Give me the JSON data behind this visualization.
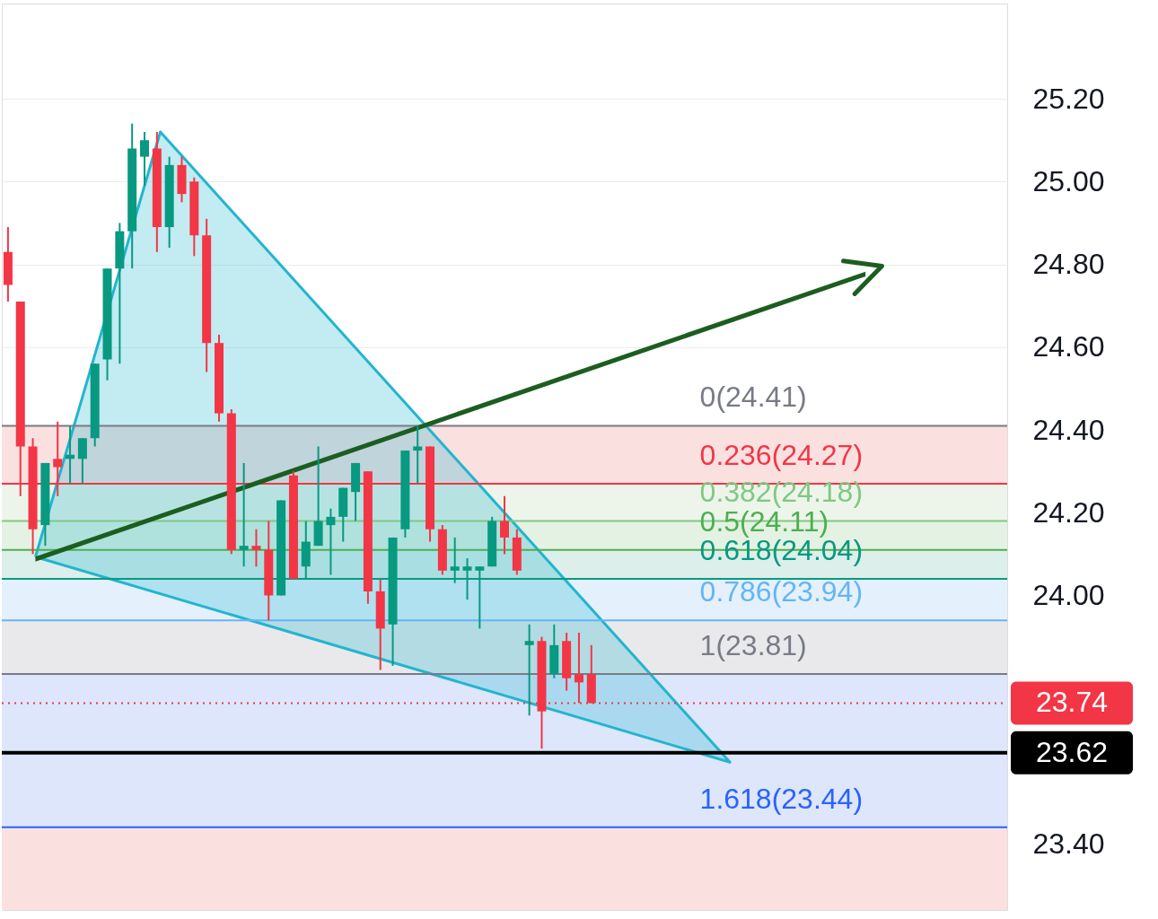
{
  "chart_data": {
    "type": "candlestick",
    "categories": [
      null,
      null,
      null,
      null,
      null,
      null,
      null,
      null,
      null,
      null,
      null,
      null,
      null,
      null,
      null,
      null,
      null,
      null,
      null,
      null,
      null,
      null,
      null,
      null,
      null,
      null,
      null,
      null,
      null,
      null,
      null,
      null,
      null,
      null,
      null,
      null,
      null,
      null,
      null,
      null,
      null,
      null,
      null,
      null,
      null,
      null,
      null,
      null,
      null,
      null,
      null,
      null,
      null,
      null,
      null,
      null,
      null,
      null,
      null,
      null,
      null,
      null,
      null,
      null,
      null,
      null,
      null,
      null,
      null,
      null,
      null,
      null,
      null,
      null,
      null,
      null,
      null,
      null,
      null,
      null,
      null
    ],
    "ohlc": [
      [
        24.83,
        24.89,
        24.71,
        24.75
      ],
      [
        24.71,
        24.71,
        24.24,
        24.36
      ],
      [
        24.36,
        24.38,
        24.1,
        24.16
      ],
      [
        24.17,
        24.32,
        24.12,
        24.32
      ],
      [
        24.33,
        24.42,
        24.24,
        24.31
      ],
      [
        24.33,
        24.41,
        24.27,
        24.34
      ],
      [
        24.33,
        24.38,
        24.27,
        24.38
      ],
      [
        24.38,
        24.56,
        24.36,
        24.56
      ],
      [
        24.57,
        24.79,
        24.52,
        24.79
      ],
      [
        24.79,
        24.9,
        24.56,
        24.88
      ],
      [
        24.88,
        25.14,
        24.79,
        25.08
      ],
      [
        25.06,
        25.12,
        24.99,
        25.1
      ],
      [
        25.08,
        25.12,
        24.83,
        24.89
      ],
      [
        24.89,
        25.06,
        24.84,
        25.04
      ],
      [
        25.04,
        25.06,
        24.95,
        24.97
      ],
      [
        25.0,
        25.01,
        24.82,
        24.87
      ],
      [
        24.87,
        24.91,
        24.54,
        24.61
      ],
      [
        24.61,
        24.63,
        24.42,
        24.44
      ],
      [
        24.44,
        24.45,
        24.1,
        24.11
      ],
      [
        24.11,
        24.32,
        24.07,
        24.12
      ],
      [
        24.12,
        24.16,
        24.07,
        24.11
      ],
      [
        24.11,
        24.18,
        23.94,
        24.0
      ],
      [
        24.0,
        24.23,
        24.0,
        24.23
      ],
      [
        24.29,
        24.3,
        24.04,
        24.04
      ],
      [
        24.07,
        24.18,
        24.04,
        24.13
      ],
      [
        24.12,
        24.36,
        24.12,
        24.18
      ],
      [
        24.17,
        24.21,
        24.05,
        24.19
      ],
      [
        24.19,
        24.26,
        24.13,
        24.26
      ],
      [
        24.25,
        24.32,
        24.18,
        24.32
      ],
      [
        24.3,
        24.3,
        23.98,
        24.01
      ],
      [
        24.01,
        24.04,
        23.82,
        23.92
      ],
      [
        23.93,
        24.14,
        23.83,
        24.14
      ],
      [
        24.16,
        24.35,
        24.14,
        24.35
      ],
      [
        24.35,
        24.41,
        24.27,
        24.36
      ],
      [
        24.36,
        24.36,
        24.13,
        24.16
      ],
      [
        24.16,
        24.17,
        24.05,
        24.06
      ],
      [
        24.06,
        24.14,
        24.03,
        24.07
      ],
      [
        24.06,
        24.09,
        23.99,
        24.07
      ],
      [
        24.06,
        24.07,
        23.92,
        24.07
      ],
      [
        24.07,
        24.19,
        24.07,
        24.18
      ],
      [
        24.18,
        24.24,
        24.1,
        24.14
      ],
      [
        24.14,
        24.16,
        24.05,
        24.06
      ],
      [
        23.88,
        23.93,
        23.71,
        23.89
      ],
      [
        23.89,
        23.9,
        23.63,
        23.72
      ],
      [
        23.81,
        23.93,
        23.8,
        23.88
      ],
      [
        23.89,
        23.91,
        23.77,
        23.8
      ],
      [
        23.81,
        23.91,
        23.74,
        23.79
      ],
      [
        23.81,
        23.88,
        23.74,
        23.74
      ],
      null,
      null,
      null,
      null,
      null,
      null,
      null,
      null,
      null,
      null,
      null,
      null,
      null,
      null,
      null,
      null,
      null,
      null,
      null,
      null,
      null,
      null,
      null,
      null,
      null,
      null,
      null,
      null,
      null,
      null,
      null,
      null,
      null
    ],
    "colors": [
      "#f23645",
      "#f23645",
      "#f23645",
      "#089981",
      "#f23645",
      "#089981",
      "#089981",
      "#089981",
      "#089981",
      "#089981",
      "#089981",
      "#089981",
      "#f23645",
      "#089981",
      "#f23645",
      "#f23645",
      "#f23645",
      "#f23645",
      "#f23645",
      "#089981",
      "#f23645",
      "#f23645",
      "#089981",
      "#f23645",
      "#089981",
      "#089981",
      "#089981",
      "#089981",
      "#089981",
      "#f23645",
      "#f23645",
      "#089981",
      "#089981",
      "#089981",
      "#f23645",
      "#f23645",
      "#089981",
      "#089981",
      "#089981",
      "#089981",
      "#f23645",
      "#f23645",
      "#089981",
      "#f23645",
      "#089981",
      "#f23645",
      "#f23645",
      "#f23645",
      null,
      null,
      null,
      null,
      null,
      null,
      null,
      null,
      null,
      null,
      null,
      null,
      null,
      null,
      null,
      null,
      null,
      null,
      null,
      null,
      null,
      null,
      null,
      null,
      null,
      null,
      null,
      null,
      null,
      null,
      null,
      null,
      null
    ],
    "ylim": [
      23.24,
      25.43
    ],
    "yticks": [
      "25.20",
      "25.00",
      "24.80",
      "24.60",
      "24.40",
      "24.20",
      "24.00",
      {
        "value": 23.8,
        "label": null
      },
      {
        "value": 23.6,
        "label": null
      },
      "23.40"
    ],
    "ref_lines": [
      {
        "axis": "y",
        "value": 24.41,
        "color": "#787b86"
      },
      {
        "axis": "y",
        "value": 24.27,
        "color": "#f23645"
      },
      {
        "axis": "y",
        "value": 24.18,
        "color": "#81c784"
      },
      {
        "axis": "y",
        "value": 24.11,
        "color": "#4caf50"
      },
      {
        "axis": "y",
        "value": 24.04,
        "color": "#089981"
      },
      {
        "axis": "y",
        "value": 23.94,
        "color": "#64b5f6"
      },
      {
        "axis": "y",
        "value": 23.81,
        "color": "#787b86"
      },
      {
        "axis": "y",
        "value": 23.44,
        "color": "#2962ff"
      },
      {
        "axis": "y",
        "value": 23.74,
        "label": "23.74",
        "color": "#f23645",
        "line_style": "dotted"
      },
      {
        "axis": "y",
        "value": 23.62,
        "label": "23.62",
        "color": "#000000",
        "line_style": "solid"
      }
    ],
    "bands": [
      {
        "axis": "y",
        "from": 24.27,
        "to": 24.41,
        "color": "#fbe0e0"
      },
      {
        "axis": "y",
        "from": 24.18,
        "to": 24.27,
        "color": "#edf5ea"
      },
      {
        "axis": "y",
        "from": 24.11,
        "to": 24.18,
        "color": "#e4f2e3"
      },
      {
        "axis": "y",
        "from": 24.04,
        "to": 24.11,
        "color": "#dcefea"
      },
      {
        "axis": "y",
        "from": 23.94,
        "to": 24.04,
        "color": "#e4f1fc"
      },
      {
        "axis": "y",
        "from": 23.81,
        "to": 23.94,
        "color": "#e9e9ec"
      },
      {
        "axis": "y",
        "from": 23.44,
        "to": 23.81,
        "color": "#dde6fb"
      },
      {
        "axis": "y",
        "from": 23.24,
        "to": 23.44,
        "color": "#fbe0e0"
      }
    ],
    "annotations": [
      {
        "text": "0(24.41)",
        "y": 24.41
      },
      {
        "text": "0.236(24.27)",
        "y": 24.27
      },
      {
        "text": "0.382(24.18)",
        "y": 24.18
      },
      {
        "text": "0.5(24.11)",
        "y": 24.11
      },
      {
        "text": "0.618(24.04)",
        "y": 24.04
      },
      {
        "text": "0.786(23.94)",
        "y": 23.94
      },
      {
        "text": "1(23.81)",
        "y": 23.81
      },
      {
        "text": "1.618(23.44)",
        "y": 23.44
      }
    ],
    "grid": "y",
    "tick_labels": "y"
  }
}
